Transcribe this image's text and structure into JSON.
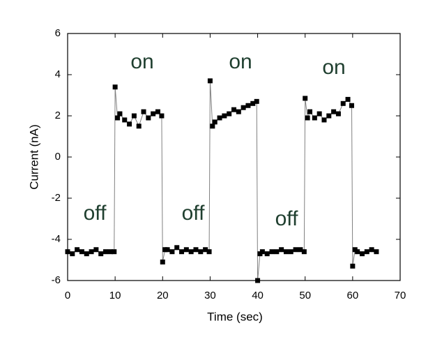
{
  "chart_data": {
    "type": "line",
    "x_label": "Time (sec)",
    "y_label": "Current (nA)",
    "color": "#000000",
    "line_color": "#808080",
    "xlim": [
      0,
      70
    ],
    "xticks": [
      0,
      10,
      20,
      30,
      40,
      50,
      60,
      70
    ],
    "ylim": [
      -6,
      6
    ],
    "yticks": [
      -6,
      -4,
      -2,
      0,
      2,
      4,
      6
    ],
    "annotations": [
      "on",
      "on",
      "on",
      "off",
      "off",
      "off"
    ],
    "x": [
      0,
      1,
      2,
      3,
      4,
      5,
      6,
      7,
      8,
      9,
      9.8,
      10,
      10.5,
      11,
      12,
      13,
      14,
      15,
      16,
      17,
      18,
      19,
      19.8,
      20,
      20.5,
      21,
      22,
      23,
      24,
      25,
      26,
      27,
      28,
      29,
      29.8,
      30,
      30.5,
      31,
      32,
      33,
      34,
      35,
      36,
      37,
      38,
      39,
      39.8,
      40,
      40.5,
      41,
      42,
      43,
      44,
      45,
      46,
      47,
      48,
      49,
      49.8,
      50,
      50.5,
      51,
      52,
      53,
      54,
      55,
      56,
      57,
      58,
      59,
      59.8,
      60,
      60.5,
      61,
      62,
      63,
      64,
      65
    ],
    "values": [
      -4.6,
      -4.7,
      -4.5,
      -4.6,
      -4.7,
      -4.6,
      -4.5,
      -4.7,
      -4.6,
      -4.6,
      -4.6,
      3.4,
      1.9,
      2.1,
      1.8,
      1.6,
      2.0,
      1.5,
      2.2,
      1.9,
      2.1,
      2.2,
      2.0,
      -5.1,
      -4.5,
      -4.5,
      -4.6,
      -4.4,
      -4.6,
      -4.5,
      -4.6,
      -4.5,
      -4.6,
      -4.5,
      -4.6,
      3.7,
      1.5,
      1.7,
      1.9,
      2.0,
      2.1,
      2.3,
      2.2,
      2.4,
      2.5,
      2.6,
      2.7,
      -6.0,
      -4.7,
      -4.6,
      -4.7,
      -4.6,
      -4.6,
      -4.5,
      -4.6,
      -4.6,
      -4.5,
      -4.5,
      -4.6,
      2.85,
      1.9,
      2.2,
      1.9,
      2.1,
      1.8,
      2.0,
      2.2,
      2.1,
      2.6,
      2.8,
      2.5,
      -5.3,
      -4.5,
      -4.6,
      -4.7,
      -4.6,
      -4.5,
      -4.6
    ]
  }
}
